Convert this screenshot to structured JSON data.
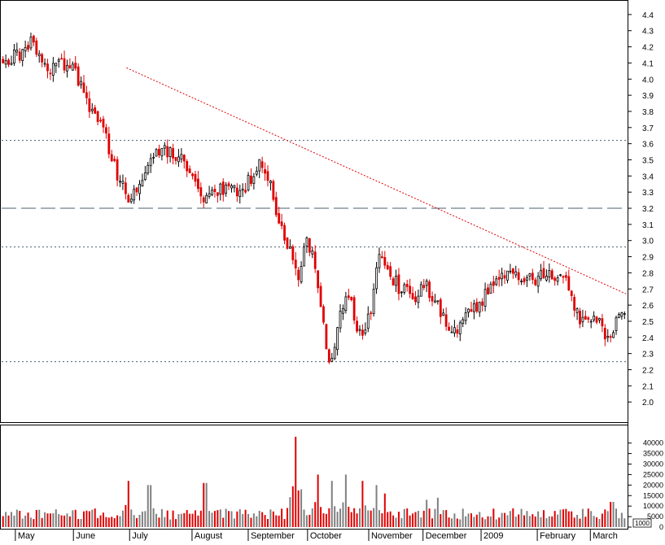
{
  "chart_data": [
    {
      "type": "candlestick",
      "title": "",
      "y_ticks": [
        "2.0",
        "2.1",
        "2.2",
        "2.3",
        "2.4",
        "2.5",
        "2.6",
        "2.7",
        "2.8",
        "2.9",
        "3.0",
        "3.1",
        "3.2",
        "3.3",
        "3.4",
        "3.5",
        "3.6",
        "3.7",
        "3.8",
        "3.9",
        "4.0",
        "4.1",
        "4.2",
        "4.3",
        "4.4"
      ],
      "y_tick_values": [
        2.0,
        2.1,
        2.2,
        2.3,
        2.4,
        2.5,
        2.6,
        2.7,
        2.8,
        2.9,
        3.0,
        3.1,
        3.2,
        3.3,
        3.4,
        3.5,
        3.6,
        3.7,
        3.8,
        3.9,
        4.0,
        4.1,
        4.2,
        4.3,
        4.4
      ],
      "ylim": [
        1.88,
        4.48
      ],
      "months": [
        "May",
        "June",
        "July",
        "August",
        "September",
        "October",
        "November",
        "December",
        "2009",
        "February",
        "March"
      ],
      "grid": false,
      "up_color": "#ffffff",
      "down_color": "#e00000",
      "trend_color": "#e00000",
      "level_color": "#4a6070",
      "reference_levels": [
        {
          "value": 3.62,
          "style": "dotted"
        },
        {
          "value": 3.2,
          "style": "dashed"
        },
        {
          "value": 2.96,
          "style": "dotted"
        },
        {
          "value": 2.25,
          "style": "dotted"
        }
      ],
      "trendline": {
        "start": [
          0.2,
          4.07
        ],
        "end": [
          1.0,
          2.67
        ]
      },
      "price_path": [
        [
          0.0,
          4.12
        ],
        [
          0.03,
          4.15
        ],
        [
          0.045,
          4.22
        ],
        [
          0.07,
          4.05
        ],
        [
          0.095,
          4.09
        ],
        [
          0.115,
          4.06
        ],
        [
          0.135,
          3.85
        ],
        [
          0.16,
          3.7
        ],
        [
          0.18,
          3.45
        ],
        [
          0.205,
          3.22
        ],
        [
          0.225,
          3.42
        ],
        [
          0.245,
          3.52
        ],
        [
          0.265,
          3.56
        ],
        [
          0.285,
          3.5
        ],
        [
          0.305,
          3.4
        ],
        [
          0.325,
          3.23
        ],
        [
          0.345,
          3.3
        ],
        [
          0.365,
          3.33
        ],
        [
          0.385,
          3.29
        ],
        [
          0.4,
          3.4
        ],
        [
          0.415,
          3.5
        ],
        [
          0.43,
          3.35
        ],
        [
          0.445,
          3.1
        ],
        [
          0.46,
          2.95
        ],
        [
          0.475,
          2.75
        ],
        [
          0.49,
          3.02
        ],
        [
          0.505,
          2.78
        ],
        [
          0.518,
          2.42
        ],
        [
          0.528,
          2.2
        ],
        [
          0.54,
          2.55
        ],
        [
          0.555,
          2.7
        ],
        [
          0.572,
          2.4
        ],
        [
          0.59,
          2.55
        ],
        [
          0.605,
          2.88
        ],
        [
          0.62,
          2.8
        ],
        [
          0.64,
          2.7
        ],
        [
          0.66,
          2.65
        ],
        [
          0.68,
          2.72
        ],
        [
          0.7,
          2.58
        ],
        [
          0.718,
          2.48
        ],
        [
          0.735,
          2.45
        ],
        [
          0.755,
          2.58
        ],
        [
          0.775,
          2.65
        ],
        [
          0.795,
          2.75
        ],
        [
          0.815,
          2.8
        ],
        [
          0.835,
          2.74
        ],
        [
          0.855,
          2.76
        ],
        [
          0.875,
          2.78
        ],
        [
          0.89,
          2.8
        ],
        [
          0.91,
          2.72
        ],
        [
          0.925,
          2.52
        ],
        [
          0.945,
          2.55
        ],
        [
          0.96,
          2.48
        ],
        [
          0.975,
          2.4
        ],
        [
          0.99,
          2.55
        ],
        [
          1.0,
          2.57
        ]
      ]
    },
    {
      "type": "bar",
      "title": "",
      "y_ticks": [
        "0",
        "5000",
        "10000",
        "15000",
        "20000",
        "25000",
        "30000",
        "35000",
        "40000"
      ],
      "y_tick_values": [
        0,
        5000,
        10000,
        15000,
        20000,
        25000,
        30000,
        35000,
        40000
      ],
      "ylim": [
        0,
        48000
      ],
      "scale_label": "1000",
      "up_color": "#808080",
      "down_color": "#e00000",
      "baseline": 6000,
      "spikes": [
        {
          "at": 0.2,
          "value": 22000
        },
        {
          "at": 0.235,
          "value": 20000
        },
        {
          "at": 0.325,
          "value": 21000
        },
        {
          "at": 0.47,
          "value": 43000
        },
        {
          "at": 0.48,
          "value": 18000
        },
        {
          "at": 0.505,
          "value": 25000
        },
        {
          "at": 0.53,
          "value": 22000
        },
        {
          "at": 0.55,
          "value": 25000
        },
        {
          "at": 0.58,
          "value": 22000
        },
        {
          "at": 0.6,
          "value": 20000
        },
        {
          "at": 0.615,
          "value": 16000
        },
        {
          "at": 0.68,
          "value": 13000
        },
        {
          "at": 0.7,
          "value": 14000
        },
        {
          "at": 0.98,
          "value": 12000
        }
      ]
    }
  ]
}
